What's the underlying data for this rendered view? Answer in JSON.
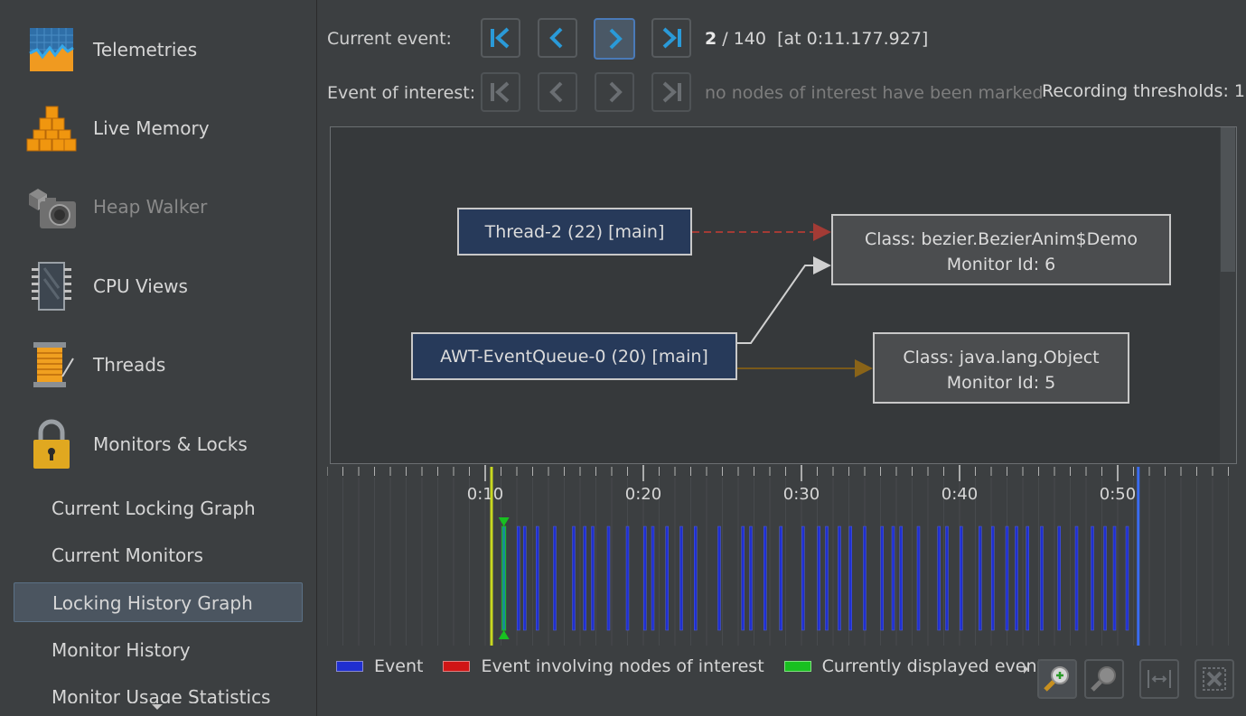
{
  "sidebar": {
    "items": [
      {
        "label": "Telemetries",
        "icon": "telemetries-icon"
      },
      {
        "label": "Live Memory",
        "icon": "live-memory-icon"
      },
      {
        "label": "Heap Walker",
        "icon": "heap-walker-icon"
      },
      {
        "label": "CPU Views",
        "icon": "cpu-views-icon"
      },
      {
        "label": "Threads",
        "icon": "threads-icon"
      },
      {
        "label": "Monitors & Locks",
        "icon": "monitors-locks-icon"
      }
    ],
    "sub_items": [
      {
        "label": "Current Locking Graph"
      },
      {
        "label": "Current Monitors"
      },
      {
        "label": "Locking History Graph",
        "selected": true
      },
      {
        "label": "Monitor History"
      },
      {
        "label": "Monitor Usage Statistics"
      }
    ]
  },
  "toolbar": {
    "current_event_label": "Current event:",
    "event_of_interest_label": "Event of interest:",
    "current_index": "2",
    "total_events": "/ 140",
    "event_time": "[at 0:11.177.927]",
    "interest_message": "no nodes of interest have been marked",
    "recording_thresholds": "Recording thresholds:  1"
  },
  "graph": {
    "threads": [
      {
        "label": "Thread-2 (22) [main]"
      },
      {
        "label": "AWT-EventQueue-0 (20) [main]"
      }
    ],
    "monitors": [
      {
        "class": "Class: bezier.BezierAnim$Demo",
        "monitor_id": "Monitor Id: 6"
      },
      {
        "class": "Class: java.lang.Object",
        "monitor_id": "Monitor Id: 5"
      }
    ],
    "edge_colors": {
      "waiting": "#a33b35",
      "owning": "#d0d0d0",
      "other": "#7a5a1a"
    }
  },
  "timeline": {
    "tick_labels": [
      "0:10",
      "0:20",
      "0:30",
      "0:40",
      "0:50"
    ],
    "tick_seconds": [
      10,
      20,
      30,
      40,
      50
    ],
    "current_event_second": 11.18,
    "end_second": 51.3,
    "event_seconds": [
      11.18,
      12.1,
      12.5,
      13.3,
      14.4,
      15.6,
      16.3,
      16.8,
      17.8,
      19.0,
      20.1,
      20.6,
      21.5,
      22.4,
      23.3,
      24.8,
      26.3,
      26.8,
      27.7,
      28.7,
      30.1,
      31.1,
      31.6,
      32.4,
      33.1,
      34.0,
      35.1,
      35.8,
      36.3,
      37.4,
      38.7,
      39.2,
      40.1,
      41.3,
      42.1,
      43.0,
      43.6,
      44.3,
      45.2,
      46.3,
      47.4,
      48.4,
      49.2,
      49.8,
      50.6
    ]
  },
  "legend": {
    "event": "Event",
    "event_interest": "Event involving nodes of interest",
    "current": "Currently displayed event",
    "colors": {
      "event": "#1f2fd0",
      "interest": "#d01515",
      "current": "#18c020"
    }
  }
}
